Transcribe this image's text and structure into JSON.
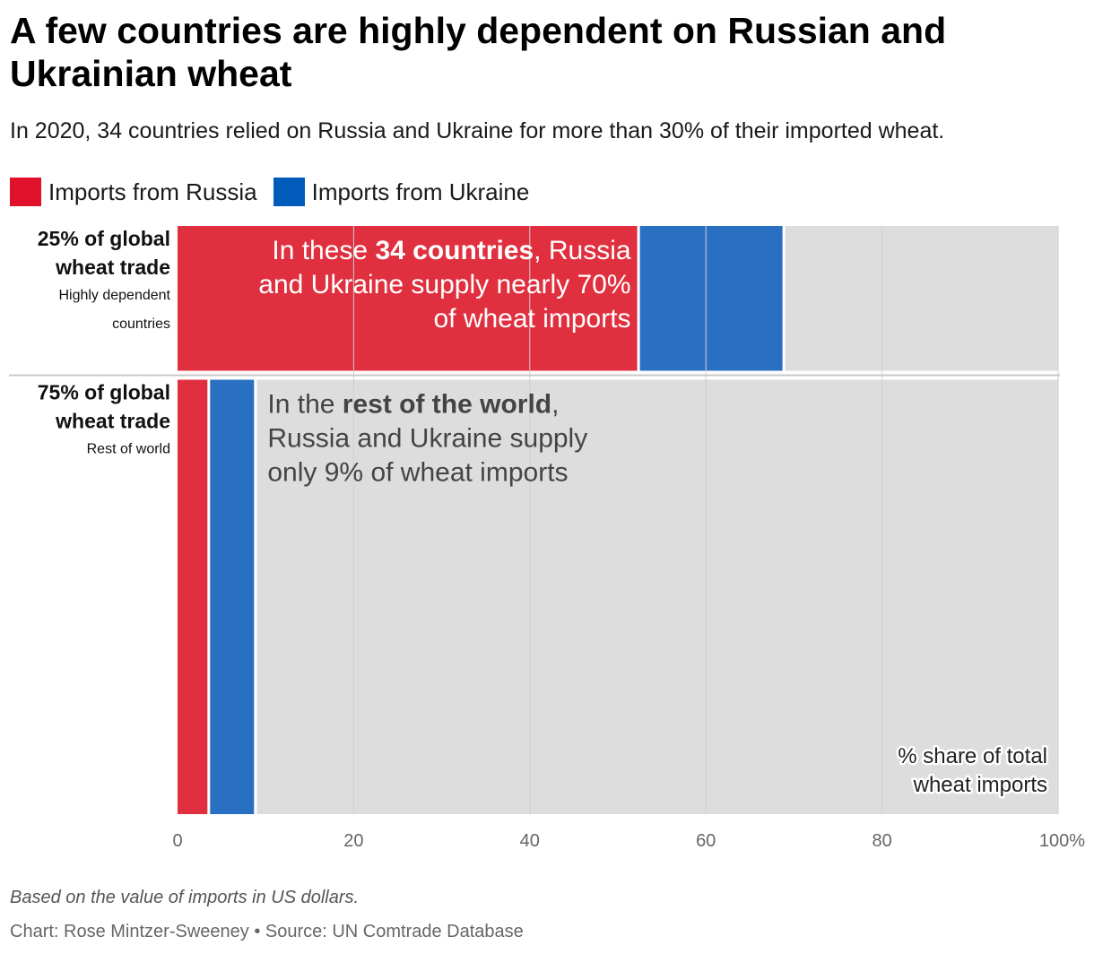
{
  "title": "A few countries are highly dependent on Russian and Ukrainian wheat",
  "subtitle": "In 2020, 34 countries relied on Russia and Ukraine for more than 30% of their imported wheat.",
  "legend": [
    {
      "label": "Imports from Russia",
      "color": "#e0112b"
    },
    {
      "label": "Imports from Ukraine",
      "color": "#005bbb"
    }
  ],
  "colors": {
    "russia": "#e0303f",
    "ukraine": "#2a70c2",
    "rest": "#dddddd",
    "label_light": "#ffffff",
    "label_dark": "#444444"
  },
  "chart_data": {
    "type": "bar",
    "orientation": "horizontal",
    "stacked": true,
    "variable_width": true,
    "xlim": [
      0,
      100
    ],
    "x_ticks": [
      "0",
      "20",
      "40",
      "60",
      "80",
      "100%"
    ],
    "x_tick_values": [
      0,
      20,
      40,
      60,
      80,
      100
    ],
    "axis_label": "% share of total wheat imports",
    "axis_label_lines": [
      "% share of total",
      "wheat imports"
    ],
    "categories": [
      {
        "name": "Highly dependent countries",
        "name_lines": [
          "Highly dependent",
          "countries"
        ],
        "weight_label_lines": [
          "25% of global",
          "wheat trade"
        ],
        "weight": 25
      },
      {
        "name": "Rest of world",
        "name_lines": [
          "Rest of world"
        ],
        "weight_label_lines": [
          "75% of global",
          "wheat trade"
        ],
        "weight": 75
      }
    ],
    "series": [
      {
        "name": "Imports from Russia",
        "values": [
          52.5,
          3.7
        ]
      },
      {
        "name": "Imports from Ukraine",
        "values": [
          16.5,
          5.3
        ]
      },
      {
        "name": "Other",
        "values": [
          31.0,
          91.0
        ]
      }
    ],
    "annotations": [
      {
        "category": "Highly dependent countries",
        "lines": [
          [
            {
              "t": "In these "
            },
            {
              "t": "34 countries",
              "b": true
            },
            {
              "t": ", Russia"
            }
          ],
          [
            {
              "t": "and Ukraine supply nearly 70%"
            }
          ],
          [
            {
              "t": "of wheat imports"
            }
          ]
        ]
      },
      {
        "category": "Rest of world",
        "lines": [
          [
            {
              "t": "In the "
            },
            {
              "t": "rest of the world",
              "b": true
            },
            {
              "t": ","
            }
          ],
          [
            {
              "t": "Russia and Ukraine supply"
            }
          ],
          [
            {
              "t": "only 9% of wheat imports"
            }
          ]
        ]
      }
    ]
  },
  "note": "Based on the value of imports in US dollars.",
  "credit": "Chart: Rose Mintzer-Sweeney • Source: UN Comtrade Database"
}
